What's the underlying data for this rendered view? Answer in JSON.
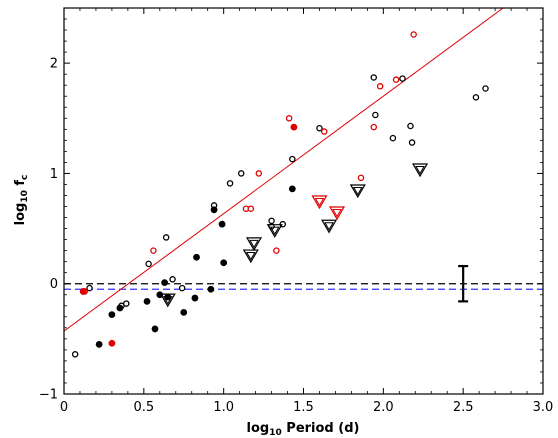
{
  "chart_data": {
    "type": "scatter",
    "title": "",
    "xlabel": "log",
    "xlabel_sub": "10",
    "xlabel_rest": " Period (d)",
    "ylabel": "log",
    "ylabel_sub": "10",
    "ylabel_rest": " f",
    "ylabel_sub2": "c",
    "xlim": [
      0,
      3.0
    ],
    "ylim": [
      -1,
      2.5
    ],
    "x_ticks": [
      {
        "value": 0,
        "label": "0"
      },
      {
        "value": 0.5,
        "label": "0.5"
      },
      {
        "value": 1.0,
        "label": "1.0"
      },
      {
        "value": 1.5,
        "label": "1.5"
      },
      {
        "value": 2.0,
        "label": "2.0"
      },
      {
        "value": 2.5,
        "label": "2.5"
      },
      {
        "value": 3.0,
        "label": "3.0"
      }
    ],
    "y_ticks": [
      {
        "value": -1,
        "label": "−1"
      },
      {
        "value": 0,
        "label": "0"
      },
      {
        "value": 1,
        "label": "1"
      },
      {
        "value": 2,
        "label": "2"
      }
    ],
    "grid": false,
    "fit_line": {
      "color": "#e00000",
      "x": [
        0,
        2.75
      ],
      "y": [
        -0.43,
        2.5
      ]
    },
    "reference_lines": [
      {
        "y": 0.0,
        "color": "#000000",
        "style": "dashed"
      },
      {
        "y": -0.05,
        "color": "#3030ff",
        "style": "dashed"
      }
    ],
    "error_bar": {
      "x": 2.5,
      "y_low": -0.16,
      "y_high": 0.16,
      "color": "#000000"
    },
    "series": [
      {
        "marker": "open-circle",
        "color": "#000000",
        "points": [
          [
            0.07,
            -0.64
          ],
          [
            0.16,
            -0.04
          ],
          [
            0.36,
            -0.2
          ],
          [
            0.39,
            -0.18
          ],
          [
            0.53,
            0.18
          ],
          [
            0.64,
            0.42
          ],
          [
            0.68,
            0.04
          ],
          [
            0.74,
            -0.04
          ],
          [
            0.94,
            0.71
          ],
          [
            1.04,
            0.91
          ],
          [
            1.11,
            1.0
          ],
          [
            1.3,
            0.57
          ],
          [
            1.3,
            0.52
          ],
          [
            1.37,
            0.54
          ],
          [
            1.43,
            1.13
          ],
          [
            1.6,
            1.41
          ],
          [
            1.94,
            1.87
          ],
          [
            1.95,
            1.53
          ],
          [
            2.06,
            1.32
          ],
          [
            2.12,
            1.86
          ],
          [
            2.17,
            1.43
          ],
          [
            2.18,
            1.28
          ],
          [
            2.58,
            1.69
          ],
          [
            2.64,
            1.77
          ]
        ]
      },
      {
        "marker": "filled-circle",
        "color": "#000000",
        "points": [
          [
            0.22,
            -0.55
          ],
          [
            0.3,
            -0.28
          ],
          [
            0.35,
            -0.22
          ],
          [
            0.52,
            -0.16
          ],
          [
            0.57,
            -0.41
          ],
          [
            0.6,
            -0.1
          ],
          [
            0.63,
            0.01
          ],
          [
            0.65,
            -0.12
          ],
          [
            0.75,
            -0.26
          ],
          [
            0.83,
            0.24
          ],
          [
            0.82,
            -0.13
          ],
          [
            0.92,
            -0.05
          ],
          [
            0.94,
            0.67
          ],
          [
            0.99,
            0.54
          ],
          [
            1.0,
            0.19
          ],
          [
            1.43,
            0.86
          ]
        ]
      },
      {
        "marker": "open-circle",
        "color": "#e00000",
        "points": [
          [
            0.13,
            -0.07
          ],
          [
            0.56,
            0.3
          ],
          [
            1.14,
            0.68
          ],
          [
            1.17,
            0.68
          ],
          [
            1.22,
            1.0
          ],
          [
            1.33,
            0.3
          ],
          [
            1.41,
            1.5
          ],
          [
            1.63,
            1.38
          ],
          [
            1.86,
            0.96
          ],
          [
            1.94,
            1.42
          ],
          [
            1.98,
            1.79
          ],
          [
            2.08,
            1.85
          ],
          [
            2.19,
            2.26
          ]
        ]
      },
      {
        "marker": "filled-circle",
        "color": "#e00000",
        "points": [
          [
            0.12,
            -0.07
          ],
          [
            0.3,
            -0.54
          ],
          [
            1.44,
            1.42
          ]
        ]
      },
      {
        "marker": "open-triangle-down",
        "color": "#000000",
        "points": [
          [
            0.65,
            -0.14
          ],
          [
            1.17,
            0.26
          ],
          [
            1.19,
            0.37
          ],
          [
            1.32,
            0.49
          ],
          [
            1.66,
            0.53
          ],
          [
            1.84,
            0.85
          ],
          [
            2.23,
            1.04
          ]
        ]
      },
      {
        "marker": "open-triangle-down",
        "color": "#e00000",
        "points": [
          [
            1.6,
            0.75
          ],
          [
            1.71,
            0.65
          ]
        ]
      }
    ]
  }
}
